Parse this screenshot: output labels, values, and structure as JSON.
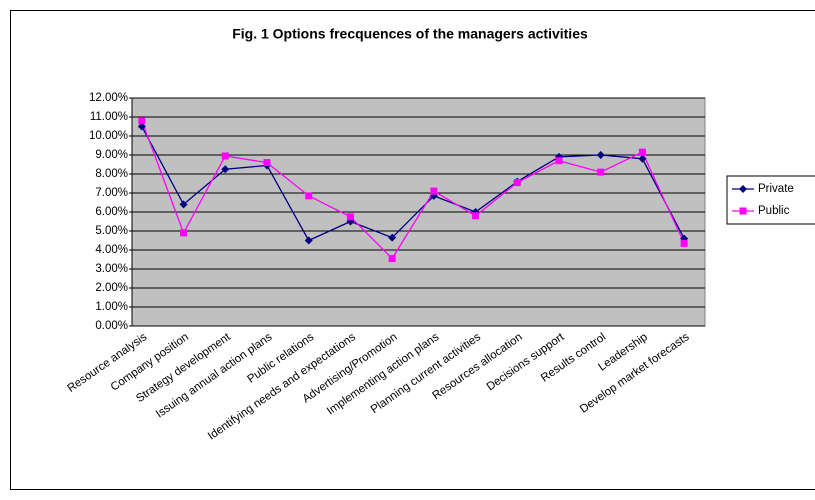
{
  "chart_data": {
    "type": "line",
    "title": "Fig. 1 Options frecquences of the managers activities",
    "categories": [
      "Resource analysis",
      "Company position",
      "Strategy development",
      "Issuing annual action plans",
      "Public relations",
      "Identifying needs and expectations",
      "Advertising/Promotion",
      "Implementing action plans",
      "Planning current activities",
      "Resources allocation",
      "Decisions support",
      "Results control",
      "Leadership",
      "Develop market forecasts"
    ],
    "series": [
      {
        "name": "Private",
        "color": "#000080",
        "marker": "diamond",
        "values": [
          10.5,
          6.4,
          8.25,
          8.45,
          4.5,
          5.5,
          4.65,
          6.85,
          6.0,
          7.6,
          8.9,
          9.0,
          8.8,
          4.6
        ]
      },
      {
        "name": "Public",
        "color": "#ff00ff",
        "marker": "square",
        "values": [
          10.8,
          4.9,
          8.95,
          8.6,
          6.85,
          5.75,
          3.55,
          7.1,
          5.8,
          7.55,
          8.7,
          8.1,
          9.15,
          4.35
        ]
      }
    ],
    "ylim": [
      0,
      12
    ],
    "yticks": [
      {
        "value": 0,
        "label": "0.00%"
      },
      {
        "value": 1,
        "label": "1.00%"
      },
      {
        "value": 2,
        "label": "2.00%"
      },
      {
        "value": 3,
        "label": "3.00%"
      },
      {
        "value": 4,
        "label": "4.00%"
      },
      {
        "value": 5,
        "label": "5.00%"
      },
      {
        "value": 6,
        "label": "6.00%"
      },
      {
        "value": 7,
        "label": "7.00%"
      },
      {
        "value": 8,
        "label": "8.00%"
      },
      {
        "value": 9,
        "label": "9.00%"
      },
      {
        "value": 10,
        "label": "10.00%"
      },
      {
        "value": 11,
        "label": "11.00%"
      },
      {
        "value": 12,
        "label": "12.00%"
      }
    ],
    "grid": true,
    "legend": "right"
  }
}
